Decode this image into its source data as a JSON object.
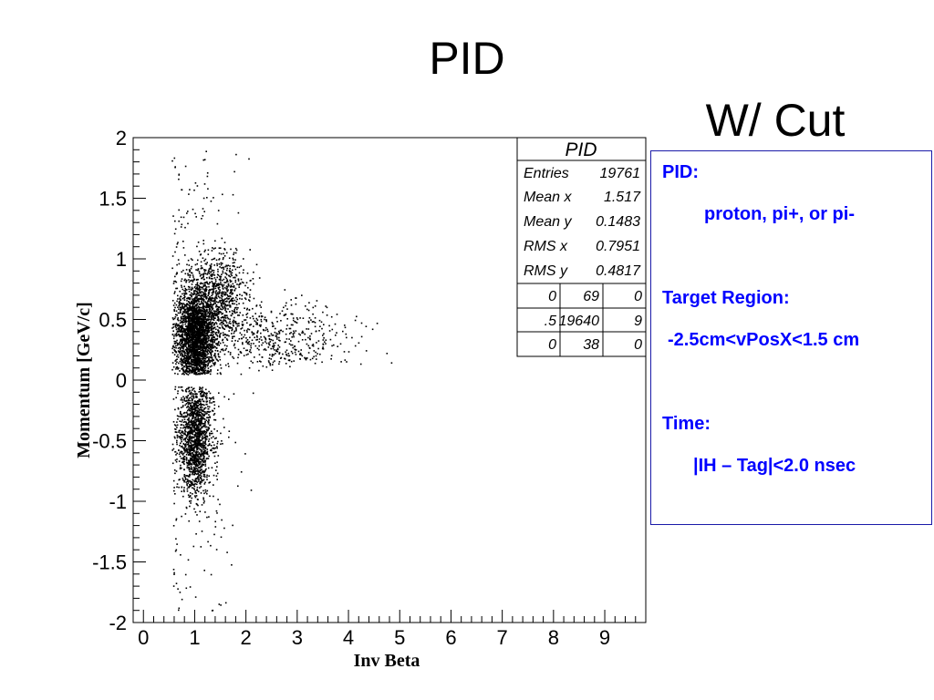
{
  "slide": {
    "title": "PID",
    "subtitle": "W/ Cut"
  },
  "chart_data": {
    "type": "scatter",
    "title": "PID",
    "xlabel": "Inv Beta",
    "ylabel": "Momentum [GeV/c]",
    "xlim": [
      -0.2,
      9.8
    ],
    "ylim": [
      -2,
      2
    ],
    "x_ticks": [
      "0",
      "1",
      "2",
      "3",
      "4",
      "5",
      "6",
      "7",
      "8",
      "9"
    ],
    "y_ticks": [
      "2",
      "1.5",
      "1",
      "0.5",
      "0",
      "-0.5",
      "-1",
      "-1.5",
      "-2"
    ],
    "clusters": [
      {
        "x_center": 1.0,
        "x_spread": 0.18,
        "y_center": 0.35,
        "y_spread": 0.22,
        "y_min": 0.05,
        "y_max": 1.0,
        "weight": 0.45
      },
      {
        "x_center": 1.5,
        "x_spread": 0.25,
        "y_center": 0.7,
        "y_spread": 0.2,
        "y_min": 0.3,
        "y_max": 1.1,
        "weight": 0.12
      },
      {
        "x_center": 2.4,
        "x_spread": 0.8,
        "y_center": 0.35,
        "y_spread": 0.15,
        "y_min": 0.08,
        "y_max": 0.8,
        "weight": 0.1
      },
      {
        "x_center": 1.0,
        "x_spread": 0.15,
        "y_center": -0.45,
        "y_spread": 0.25,
        "y_min": -1.1,
        "y_max": -0.05,
        "weight": 0.25
      },
      {
        "x_center": 1.0,
        "x_spread": 0.4,
        "y_center": 0.0,
        "y_spread": 1.2,
        "y_min": -1.9,
        "y_max": 1.9,
        "weight": 0.08
      }
    ],
    "stats": {
      "title": "PID",
      "entries_label": "Entries",
      "entries": "19761",
      "mean_x_label": "Mean x",
      "mean_x": "1.517",
      "mean_y_label": "Mean y",
      "mean_y": "0.1483",
      "rms_x_label": "RMS x",
      "rms_x": "0.7951",
      "rms_y_label": "RMS y",
      "rms_y": "0.4817",
      "overflow": [
        [
          "0",
          "69",
          "0"
        ],
        [
          ".5",
          "19640",
          "9"
        ],
        [
          "0",
          "38",
          "0"
        ]
      ]
    }
  },
  "cuts": {
    "pid_label": "PID:",
    "pid_value": "proton, pi+, or pi-",
    "target_label": "Target Region:",
    "target_value": "-2.5cm<vPosX<1.5 cm",
    "time_label": "Time:",
    "time_value": "|IH – Tag|<2.0 nsec"
  }
}
